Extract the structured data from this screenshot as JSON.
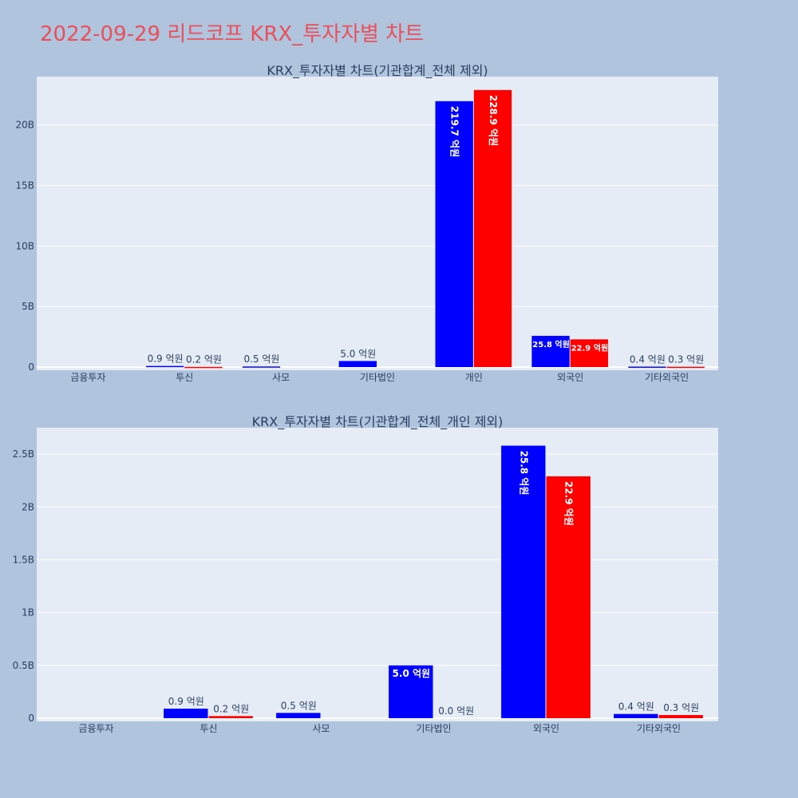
{
  "title": "2022-09-29 리드코프 KRX_투자자별 차트",
  "colors": {
    "buy": "#0000ff",
    "sell": "#ff0000",
    "plot_bg": "#e5ecf6",
    "page_bg": "#b0c4de",
    "title": "#e8505b"
  },
  "chart_data": [
    {
      "type": "bar",
      "title": "KRX_투자자별 차트(기관합계_전체 제외)",
      "categories": [
        "금융투자",
        "투신",
        "사모",
        "기타법인",
        "개인",
        "외국인",
        "기타외국인"
      ],
      "series": [
        {
          "values": [
            0,
            90000000,
            50000000,
            500000000,
            21970000000,
            2580000000,
            40000000
          ],
          "labels": [
            "",
            "0.9 억원",
            "0.5 억원",
            "5.0 억원",
            "219.7 억원",
            "25.8 억원",
            "0.4 억원"
          ]
        },
        {
          "values": [
            0,
            20000000,
            0,
            0,
            22890000000,
            2290000000,
            30000000
          ],
          "labels": [
            "",
            "0.2 억원",
            "",
            "",
            "228.9 억원",
            "22.9 억원",
            "0.3 억원"
          ]
        }
      ],
      "yticks": [
        0,
        5000000000,
        10000000000,
        15000000000,
        20000000000
      ],
      "ytick_labels": [
        "0",
        "5B",
        "10B",
        "15B",
        "20B"
      ],
      "ylim": [
        0,
        24000000000
      ],
      "grid": true
    },
    {
      "type": "bar",
      "title": "KRX_투자자별 차트(기관합계_전체_개인 제외)",
      "categories": [
        "금융투자",
        "투신",
        "사모",
        "기타법인",
        "외국인",
        "기타외국인"
      ],
      "series": [
        {
          "values": [
            0,
            90000000,
            50000000,
            500000000,
            2580000000,
            40000000
          ],
          "labels": [
            "",
            "0.9 억원",
            "0.5 억원",
            "5.0 억원",
            "25.8 억원",
            "0.4 억원"
          ]
        },
        {
          "values": [
            0,
            20000000,
            0,
            0,
            2290000000,
            30000000
          ],
          "labels": [
            "",
            "0.2 억원",
            "",
            "0.0 억원",
            "22.9 억원",
            "0.3 억원"
          ]
        }
      ],
      "yticks": [
        0,
        500000000,
        1000000000,
        1500000000,
        2000000000,
        2500000000
      ],
      "ytick_labels": [
        "0",
        "0.5B",
        "1B",
        "1.5B",
        "2B",
        "2.5B"
      ],
      "ylim": [
        0,
        2750000000
      ],
      "grid": true
    }
  ]
}
